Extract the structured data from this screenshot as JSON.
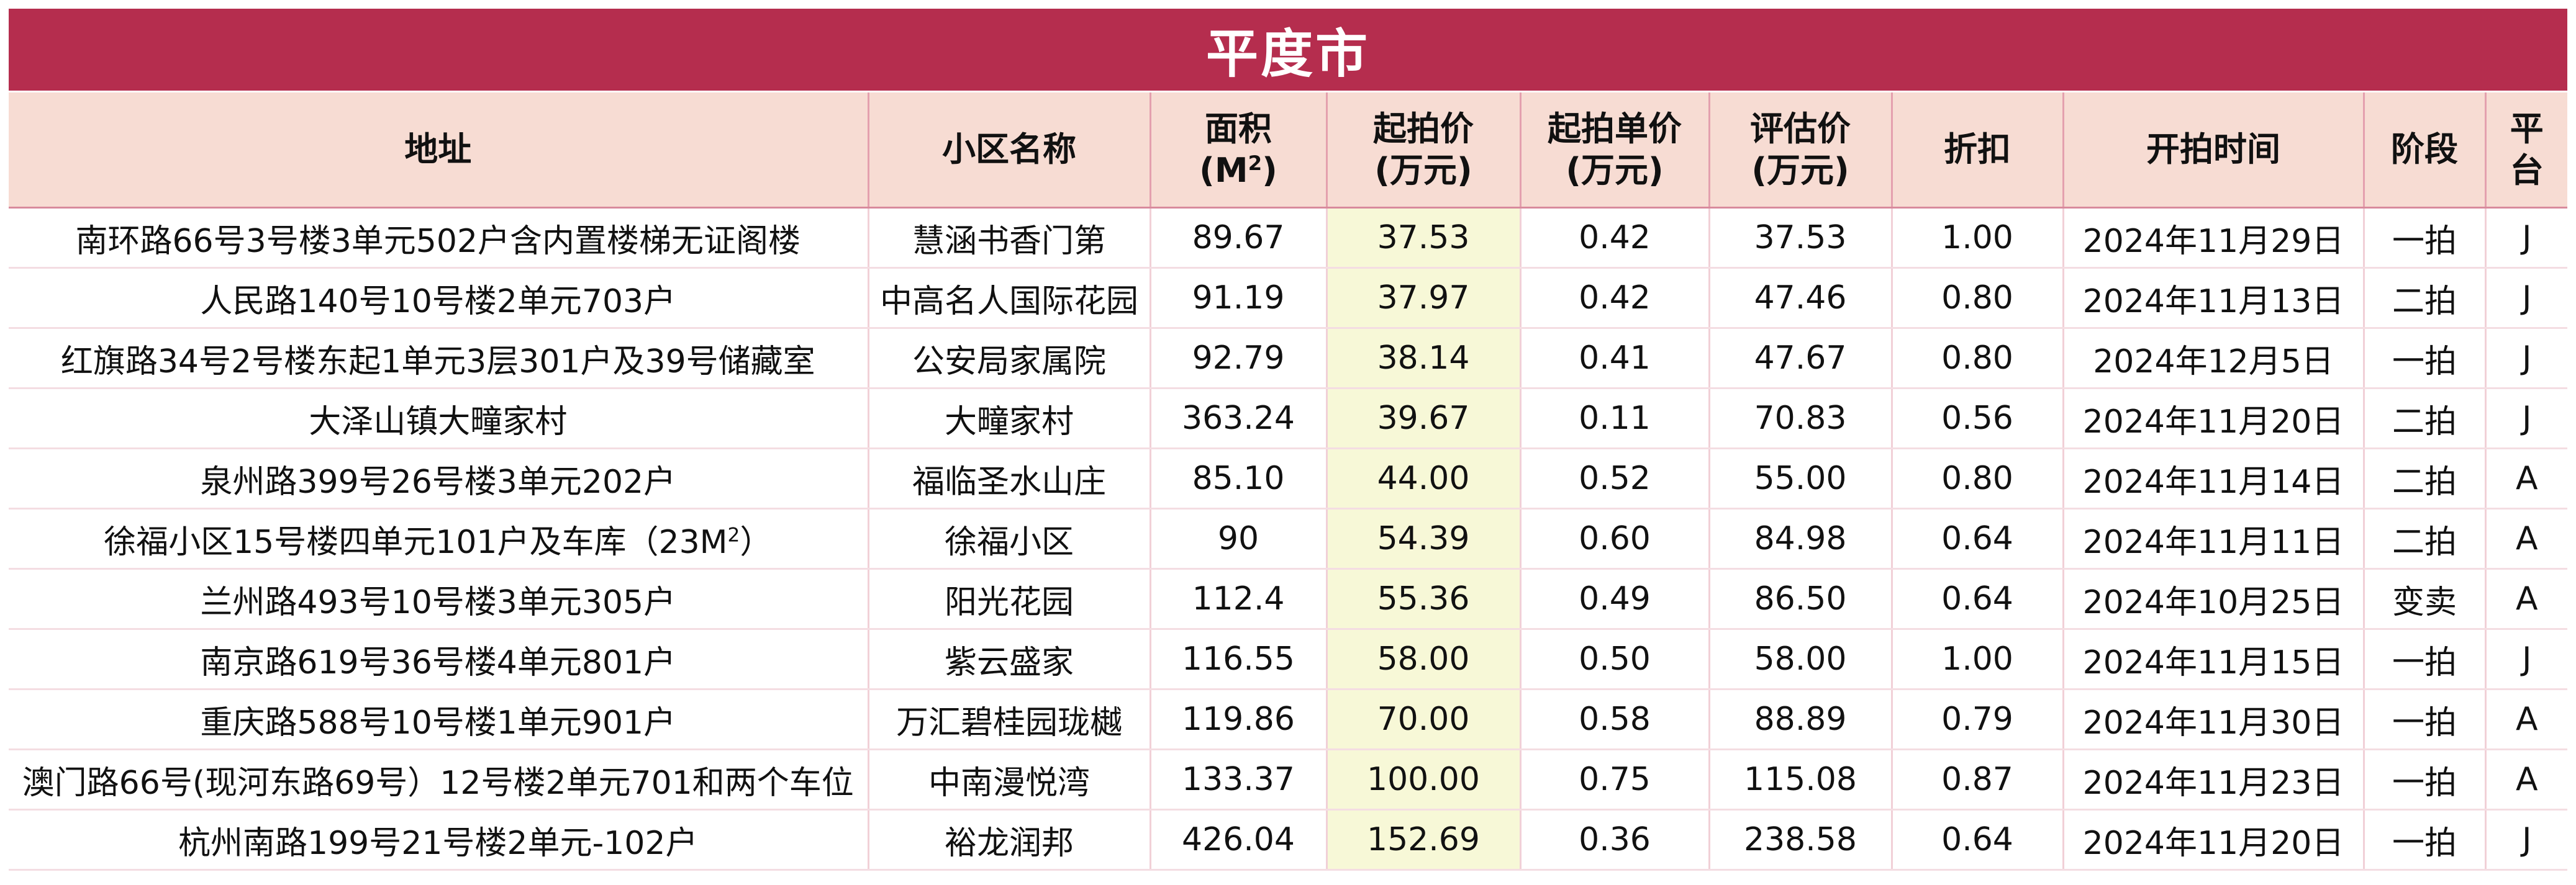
{
  "title": "平度市",
  "headers": {
    "address": "地址",
    "community": "小区名称",
    "area_l1": "面积",
    "area_l2_pre": "(M",
    "area_l2_sup": "2",
    "area_l2_post": ")",
    "start_price_l1": "起拍价",
    "start_price_l2": "(万元)",
    "unit_price_l1": "起拍单价",
    "unit_price_l2": "(万元)",
    "appraisal_l1": "评估价",
    "appraisal_l2": "(万元)",
    "discount": "折扣",
    "start_time": "开拍时间",
    "stage": "阶段",
    "platform_l1": "平",
    "platform_l2": "台"
  },
  "rows": [
    {
      "address": "南环路66号3号楼3单元502户含内置楼梯无证阁楼",
      "community": "慧涵书香门第",
      "area": "89.67",
      "start_price": "37.53",
      "unit_price": "0.42",
      "appraisal": "37.53",
      "discount": "1.00",
      "start_time": "2024年11月29日",
      "stage": "一拍",
      "platform": "J"
    },
    {
      "address": "人民路140号10号楼2单元703户",
      "community": "中高名人国际花园",
      "area": "91.19",
      "start_price": "37.97",
      "unit_price": "0.42",
      "appraisal": "47.46",
      "discount": "0.80",
      "start_time": "2024年11月13日",
      "stage": "二拍",
      "platform": "J"
    },
    {
      "address": "红旗路34号2号楼东起1单元3层301户及39号储藏室",
      "community": "公安局家属院",
      "area": "92.79",
      "start_price": "38.14",
      "unit_price": "0.41",
      "appraisal": "47.67",
      "discount": "0.80",
      "start_time": "2024年12月5日",
      "stage": "一拍",
      "platform": "J"
    },
    {
      "address": "大泽山镇大疃家村",
      "community": "大疃家村",
      "area": "363.24",
      "start_price": "39.67",
      "unit_price": "0.11",
      "appraisal": "70.83",
      "discount": "0.56",
      "start_time": "2024年11月20日",
      "stage": "二拍",
      "platform": "J"
    },
    {
      "address": "泉州路399号26号楼3单元202户",
      "community": "福临圣水山庄",
      "area": "85.10",
      "start_price": "44.00",
      "unit_price": "0.52",
      "appraisal": "55.00",
      "discount": "0.80",
      "start_time": "2024年11月14日",
      "stage": "二拍",
      "platform": "A"
    },
    {
      "address_pre": "徐福小区15号楼四单元101户及车库（23M",
      "address_sup": "2",
      "address_post": "）",
      "community": "徐福小区",
      "area": "90",
      "start_price": "54.39",
      "unit_price": "0.60",
      "appraisal": "84.98",
      "discount": "0.64",
      "start_time": "2024年11月11日",
      "stage": "二拍",
      "platform": "A"
    },
    {
      "address": "兰州路493号10号楼3单元305户",
      "community": "阳光花园",
      "area": "112.4",
      "start_price": "55.36",
      "unit_price": "0.49",
      "appraisal": "86.50",
      "discount": "0.64",
      "start_time": "2024年10月25日",
      "stage": "变卖",
      "platform": "A"
    },
    {
      "address": "南京路619号36号楼4单元801户",
      "community": "紫云盛家",
      "area": "116.55",
      "start_price": "58.00",
      "unit_price": "0.50",
      "appraisal": "58.00",
      "discount": "1.00",
      "start_time": "2024年11月15日",
      "stage": "一拍",
      "platform": "J"
    },
    {
      "address": "重庆路588号10号楼1单元901户",
      "community": "万汇碧桂园珑樾",
      "area": "119.86",
      "start_price": "70.00",
      "unit_price": "0.58",
      "appraisal": "88.89",
      "discount": "0.79",
      "start_time": "2024年11月30日",
      "stage": "一拍",
      "platform": "A"
    },
    {
      "address": "澳门路66号(现河东路69号）12号楼2单元701和两个车位",
      "community": "中南漫悦湾",
      "area": "133.37",
      "start_price": "100.00",
      "unit_price": "0.75",
      "appraisal": "115.08",
      "discount": "0.87",
      "start_time": "2024年11月23日",
      "stage": "一拍",
      "platform": "A"
    },
    {
      "address": "杭州南路199号21号楼2单元-102户",
      "community": "裕龙润邦",
      "area": "426.04",
      "start_price": "152.69",
      "unit_price": "0.36",
      "appraisal": "238.58",
      "discount": "0.64",
      "start_time": "2024年11月20日",
      "stage": "一拍",
      "platform": "J"
    }
  ],
  "colors": {
    "title_bg": "#b52d4e",
    "header_bg": "#f7dcd3",
    "price_col_bg": "#f7f8d7"
  }
}
